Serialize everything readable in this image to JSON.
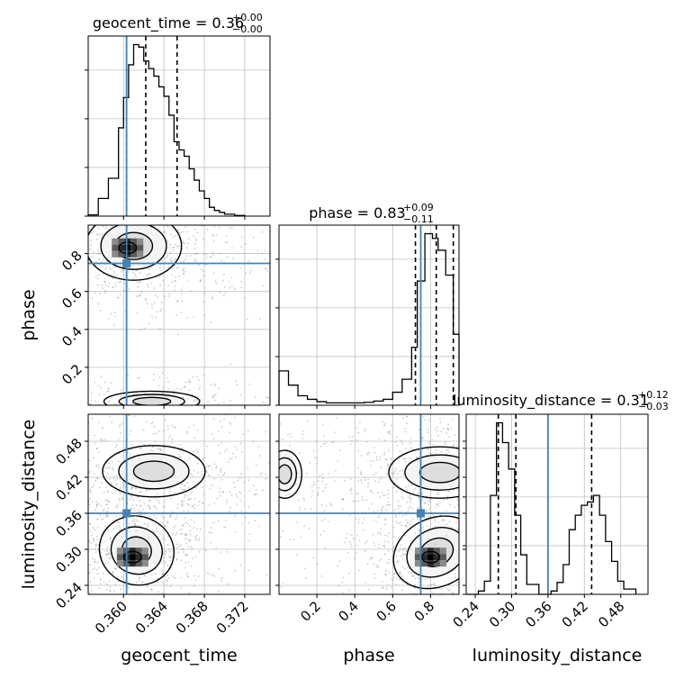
{
  "chart_data": {
    "type": "corner",
    "parameters": [
      "geocent_time",
      "phase",
      "luminosity_distance"
    ],
    "truths": {
      "geocent_time": 0.3603,
      "phase": 0.748,
      "luminosity_distance": 0.36
    },
    "colors": {
      "truth": "#4682b4",
      "hist": "#000000",
      "grid": "#c0c0c0",
      "samples": "#8c8c8c"
    },
    "grid": true,
    "axes": {
      "geocent_time": {
        "range": [
          0.3565,
          0.3745
        ],
        "ticks": [
          0.36,
          0.364,
          0.368,
          0.372
        ],
        "tick_labels": [
          "0.360",
          "0.364",
          "0.368",
          "0.372"
        ],
        "label": "geocent_time"
      },
      "phase": {
        "range": [
          0.0,
          0.95
        ],
        "ticks": [
          0.2,
          0.4,
          0.6,
          0.8
        ],
        "tick_labels": [
          "0.2",
          "0.4",
          "0.6",
          "0.8"
        ],
        "label": "phase"
      },
      "luminosity_distance": {
        "range": [
          0.225,
          0.525
        ],
        "ticks": [
          0.24,
          0.3,
          0.36,
          0.42,
          0.48
        ],
        "tick_labels": [
          "0.24",
          "0.30",
          "0.36",
          "0.42",
          "0.48"
        ],
        "label": "luminosity_distance"
      }
    },
    "diagonal": [
      {
        "param": "geocent_time",
        "title_main": "geocent_time = 0.36",
        "title_sup": "+0.00",
        "title_sub": "−0.00",
        "quantiles": [
          0.3603,
          0.3622,
          0.3653
        ],
        "bin_edges": [
          0.3565,
          0.3575,
          0.3585,
          0.3595,
          0.36,
          0.3605,
          0.361,
          0.3615,
          0.362,
          0.3625,
          0.363,
          0.3635,
          0.364,
          0.3645,
          0.365,
          0.3655,
          0.366,
          0.3665,
          0.367,
          0.3675,
          0.368,
          0.3685,
          0.369,
          0.3695,
          0.37,
          0.371,
          0.372
        ],
        "counts": [
          2,
          28,
          60,
          140,
          188,
          240,
          272,
          268,
          246,
          234,
          222,
          205,
          190,
          160,
          118,
          105,
          95,
          75,
          57,
          40,
          28,
          14,
          9,
          6,
          3,
          1
        ]
      },
      {
        "param": "phase",
        "title_main": "phase = 0.83",
        "title_sup": "+0.09",
        "title_sub": "−0.11",
        "quantiles": [
          0.72,
          0.83,
          0.92
        ],
        "bin_edges": [
          0.0,
          0.05,
          0.1,
          0.15,
          0.2,
          0.25,
          0.3,
          0.35,
          0.4,
          0.45,
          0.5,
          0.55,
          0.6,
          0.65,
          0.7,
          0.73,
          0.77,
          0.81,
          0.84,
          0.88,
          0.92,
          0.95
        ],
        "counts": [
          58,
          34,
          16,
          10,
          6,
          4,
          4,
          4,
          4,
          5,
          7,
          10,
          22,
          44,
          98,
          210,
          290,
          282,
          262,
          220,
          120
        ]
      },
      {
        "param": "luminosity_distance",
        "title_main": "luminosity_distance = 0.31",
        "title_sup": "+0.12",
        "title_sub": "−0.03",
        "quantiles": [
          0.278,
          0.307,
          0.432
        ],
        "bin_edges": [
          0.225,
          0.245,
          0.255,
          0.265,
          0.275,
          0.285,
          0.295,
          0.305,
          0.315,
          0.325,
          0.345,
          0.365,
          0.375,
          0.385,
          0.395,
          0.405,
          0.415,
          0.425,
          0.435,
          0.445,
          0.455,
          0.465,
          0.475,
          0.485,
          0.505
        ],
        "counts": [
          0,
          5,
          20,
          150,
          260,
          230,
          190,
          120,
          60,
          15,
          0,
          5,
          18,
          45,
          98,
          120,
          135,
          140,
          150,
          120,
          80,
          50,
          20,
          8
        ]
      }
    ],
    "histograms_2d": [
      {
        "x": "geocent_time",
        "y": "phase",
        "modes": [
          {
            "center": [
              0.3606,
              0.84
            ],
            "core": [
              0.3604,
              0.83
            ]
          }
        ]
      },
      {
        "x": "geocent_time",
        "y": "luminosity_distance",
        "modes": [
          {
            "center": [
              0.3618,
              0.3
            ],
            "core": [
              0.3612,
              0.287
            ]
          },
          {
            "center": [
              0.363,
              0.43
            ]
          }
        ]
      },
      {
        "x": "phase",
        "y": "luminosity_distance",
        "modes": [
          {
            "center": [
              0.82,
              0.293
            ],
            "core": [
              0.78,
              0.287
            ]
          },
          {
            "center": [
              0.83,
              0.43
            ]
          },
          {
            "center": [
              0.02,
              0.425
            ]
          }
        ]
      }
    ]
  }
}
